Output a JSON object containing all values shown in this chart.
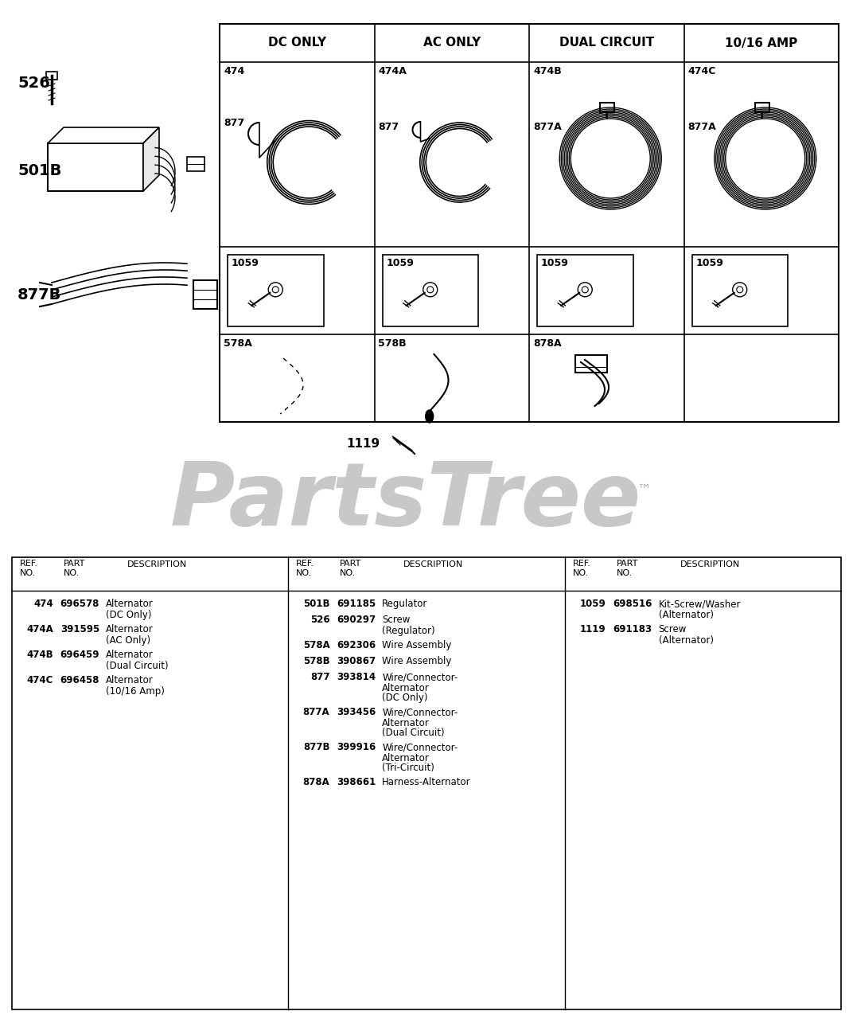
{
  "bg_color": "#ffffff",
  "watermark": "PartsTree",
  "watermark_tm": "™",
  "diagram_table": {
    "headers": [
      "DC ONLY",
      "AC ONLY",
      "DUAL CIRCUIT",
      "10/16 AMP"
    ],
    "row1_refs": [
      "474",
      "474A",
      "474B",
      "474C"
    ],
    "row1_sub_refs": [
      "877",
      "877",
      "877A",
      "877A"
    ],
    "row2_refs": [
      "1059",
      "1059",
      "1059",
      "1059"
    ],
    "row3_refs": [
      "578A",
      "578B",
      "878A",
      ""
    ]
  },
  "parts_table": {
    "col1": [
      {
        "ref": "474",
        "part": "696578",
        "desc1": "Alternator",
        "desc2": "(DC Only)"
      },
      {
        "ref": "474A",
        "part": "391595",
        "desc1": "Alternator",
        "desc2": "(AC Only)"
      },
      {
        "ref": "474B",
        "part": "696459",
        "desc1": "Alternator",
        "desc2": "(Dual Circuit)"
      },
      {
        "ref": "474C",
        "part": "696458",
        "desc1": "Alternator",
        "desc2": "(10/16 Amp)"
      }
    ],
    "col2": [
      {
        "ref": "501B",
        "part": "691185",
        "desc1": "Regulator",
        "desc2": "",
        "desc3": ""
      },
      {
        "ref": "526",
        "part": "690297",
        "desc1": "Screw",
        "desc2": "(Regulator)",
        "desc3": ""
      },
      {
        "ref": "578A",
        "part": "692306",
        "desc1": "Wire Assembly",
        "desc2": "",
        "desc3": ""
      },
      {
        "ref": "578B",
        "part": "390867",
        "desc1": "Wire Assembly",
        "desc2": "",
        "desc3": ""
      },
      {
        "ref": "877",
        "part": "393814",
        "desc1": "Wire/Connector-",
        "desc2": "Alternator",
        "desc3": "(DC Only)"
      },
      {
        "ref": "877A",
        "part": "393456",
        "desc1": "Wire/Connector-",
        "desc2": "Alternator",
        "desc3": "(Dual Circuit)"
      },
      {
        "ref": "877B",
        "part": "399916",
        "desc1": "Wire/Connector-",
        "desc2": "Alternator",
        "desc3": "(Tri-Circuit)"
      },
      {
        "ref": "878A",
        "part": "398661",
        "desc1": "Harness-Alternator",
        "desc2": "",
        "desc3": ""
      }
    ],
    "col3": [
      {
        "ref": "1059",
        "part": "698516",
        "desc1": "Kit-Screw/Washer",
        "desc2": "(Alternator)",
        "desc3": ""
      },
      {
        "ref": "1119",
        "part": "691183",
        "desc1": "Screw",
        "desc2": "(Alternator)",
        "desc3": ""
      }
    ]
  }
}
